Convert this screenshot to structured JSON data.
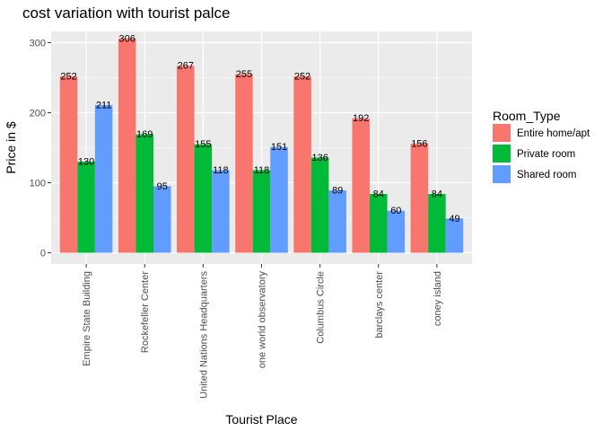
{
  "chart_data": {
    "type": "bar",
    "title": "cost variation with tourist palce",
    "xlabel": "Tourist Place",
    "ylabel": "Price in $",
    "categories": [
      "Empire State Building",
      "Rockefeller Center",
      "United Nations Headquarters",
      "one world observatory",
      "Columbus Circle",
      "barclays center",
      "coney island"
    ],
    "series": [
      {
        "name": "Entire home/apt",
        "color": "#F8766D",
        "values": [
          252,
          306,
          267,
          255,
          252,
          192,
          156
        ]
      },
      {
        "name": "Private room",
        "color": "#00BA38",
        "values": [
          130,
          169,
          155,
          118,
          136,
          84,
          84
        ]
      },
      {
        "name": "Shared room",
        "color": "#619CFF",
        "values": [
          211,
          95,
          118,
          151,
          89,
          60,
          49
        ]
      }
    ],
    "ylim": [
      -16,
      316
    ],
    "yticks": [
      0,
      100,
      200,
      300
    ],
    "grid": true,
    "legend": {
      "title": "Room_Type",
      "position": "right"
    },
    "panel_background": "#EBEBEB"
  }
}
